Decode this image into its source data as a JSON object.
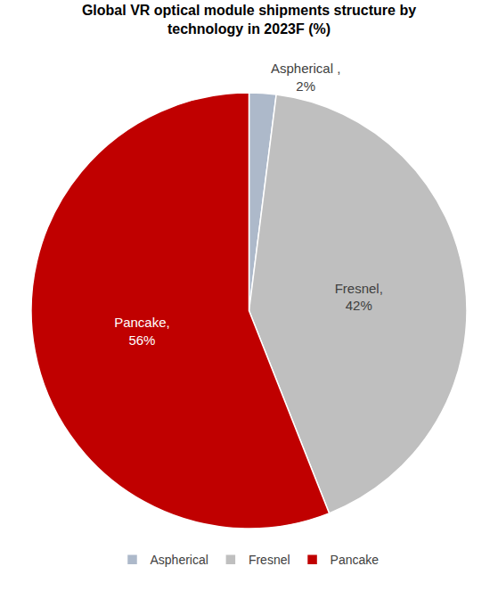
{
  "chart_data": {
    "type": "pie",
    "title": "Global VR optical module shipments structure by technology in 2023F (%)",
    "categories": [
      "Aspherical",
      "Fresnel",
      "Pancake"
    ],
    "values": [
      2,
      42,
      56
    ],
    "value_labels": [
      "Aspherical ,\n2%",
      "Fresnel,\n42%",
      "Pancake,\n56%"
    ],
    "colors": [
      "#adb9ca",
      "#bfbfbf",
      "#c00000"
    ],
    "data_labels": true,
    "legend": "bottom"
  }
}
